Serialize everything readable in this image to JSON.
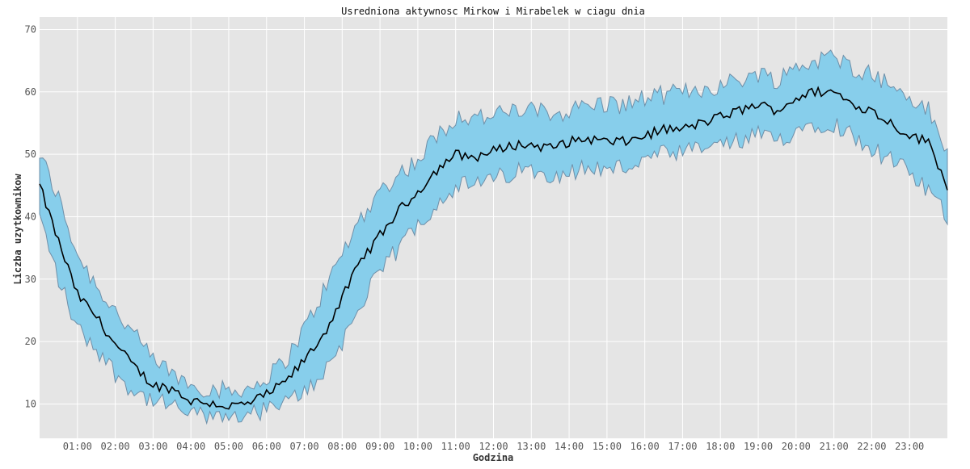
{
  "chart_data": {
    "type": "line",
    "title": "Usredniona aktywnosc Mirkow i Mirabelek w ciagu dnia",
    "xlabel": "Godzina",
    "ylabel": "Liczba uzytkownikow",
    "x_ticks": [
      "01:00",
      "02:00",
      "03:00",
      "04:00",
      "05:00",
      "06:00",
      "07:00",
      "08:00",
      "09:00",
      "10:00",
      "11:00",
      "12:00",
      "13:00",
      "14:00",
      "15:00",
      "16:00",
      "17:00",
      "18:00",
      "19:00",
      "20:00",
      "21:00",
      "22:00",
      "23:00"
    ],
    "y_ticks": [
      10,
      20,
      30,
      40,
      50,
      60,
      70
    ],
    "xlim": [
      0,
      1440
    ],
    "ylim": [
      4.5,
      72
    ],
    "grid": true,
    "colors": {
      "mean": "#000000",
      "band_fill": "#87ceeb",
      "band_edge": "#6f8fa8",
      "background": "#e5e5e5",
      "grid": "#ffffff"
    },
    "series": [
      {
        "x_minutes": [
          0,
          30,
          60,
          90,
          120,
          150,
          180,
          210,
          240,
          270,
          300,
          330,
          360,
          390,
          420,
          450,
          480,
          510,
          540,
          570,
          600,
          630,
          660,
          690,
          720,
          750,
          780,
          810,
          840,
          870,
          900,
          930,
          960,
          990,
          1020,
          1050,
          1080,
          1110,
          1140,
          1170,
          1200,
          1230,
          1260,
          1290,
          1320,
          1350,
          1380,
          1410,
          1440
        ],
        "mean": [
          45,
          36,
          27.5,
          24,
          19.5,
          16,
          13,
          12.5,
          10.5,
          10.2,
          9.6,
          10,
          11.5,
          13.5,
          17,
          21,
          27,
          33,
          37,
          41,
          44,
          47.5,
          50,
          49.5,
          50.5,
          51.5,
          51.5,
          51,
          52,
          52.5,
          52,
          52,
          53,
          54,
          54,
          55,
          56,
          57,
          58,
          57,
          59,
          60,
          60,
          58,
          57,
          55,
          53,
          52,
          45
        ],
        "lower": [
          40,
          30,
          22,
          19,
          15,
          12,
          10.5,
          9.5,
          8.5,
          8,
          8,
          8.5,
          9,
          10,
          12,
          15,
          20,
          26,
          31,
          35,
          39,
          42,
          45,
          45,
          46,
          47,
          47.5,
          47,
          47,
          48,
          47.5,
          48,
          49,
          50,
          50,
          51,
          51.5,
          52,
          53,
          52,
          54,
          55,
          55,
          53,
          51,
          49,
          47,
          44,
          40
        ],
        "upper": [
          50,
          43,
          34,
          29,
          25,
          21,
          17,
          15,
          13,
          12.5,
          12,
          12.5,
          14,
          17,
          22,
          28,
          34,
          40,
          44,
          47,
          49,
          53,
          56,
          56,
          56,
          57,
          57,
          56.5,
          57,
          58,
          58,
          58,
          59,
          59.5,
          60,
          60.5,
          61,
          62,
          63,
          62,
          64,
          65,
          65.5,
          64,
          63,
          61,
          59,
          57,
          50
        ]
      }
    ]
  }
}
